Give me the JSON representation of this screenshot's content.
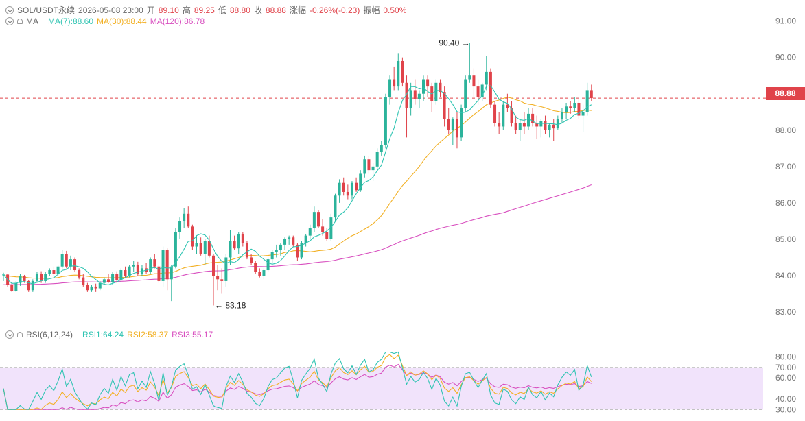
{
  "header": {
    "symbol": "SOL/USDT永续",
    "datetime": "2026-05-08 23:00",
    "open_label": "开",
    "open": "89.10",
    "high_label": "高",
    "high": "89.25",
    "low_label": "低",
    "low": "88.80",
    "close_label": "收",
    "close": "88.88",
    "change_label": "涨幅",
    "change": "-0.26%(-0.23)",
    "amp_label": "振幅",
    "amp": "0.50%"
  },
  "ma_legend": {
    "name": "MA",
    "ma7": "MA(7):88.60",
    "ma30": "MA(30):88.44",
    "ma120": "MA(120):86.78"
  },
  "rsi_legend": {
    "name": "RSI(6,12,24)",
    "rsi1": "RSI1:64.24",
    "rsi2": "RSI2:58.37",
    "rsi3": "RSI3:55.17"
  },
  "price_tag": "88.88",
  "colors": {
    "up": "#2bb39b",
    "down": "#e0434a",
    "ma7": "#2fc4b2",
    "ma30": "#f2b024",
    "ma120": "#d84fbf",
    "rsi1": "#2fc4b2",
    "rsi2": "#f2b024",
    "rsi3": "#d84fbf",
    "rsi_band": "#f1e3fb"
  },
  "chart_data": [
    {
      "type": "candlestick",
      "title": "SOL/USDT永续",
      "y_ticks": [
        "91.00",
        "90.00",
        "89.00",
        "88.00",
        "87.00",
        "86.00",
        "85.00",
        "84.00",
        "83.00"
      ],
      "ylim": [
        82.85,
        91.2
      ],
      "last_price": 88.88,
      "annotations": [
        {
          "text": "90.40",
          "value": 90.4,
          "type": "max"
        },
        {
          "text": "83.18",
          "value": 83.18,
          "type": "min"
        }
      ],
      "candles": [
        [
          84.02,
          84.08,
          83.85,
          84.03
        ],
        [
          84.03,
          84.05,
          83.7,
          83.75
        ],
        [
          83.75,
          83.82,
          83.55,
          83.58
        ],
        [
          83.58,
          83.85,
          83.55,
          83.8
        ],
        [
          83.8,
          84.05,
          83.72,
          84
        ],
        [
          84,
          84.02,
          83.8,
          83.85
        ],
        [
          83.85,
          83.88,
          83.55,
          83.6
        ],
        [
          83.6,
          83.9,
          83.55,
          83.85
        ],
        [
          83.85,
          84.1,
          83.8,
          84.05
        ],
        [
          84.05,
          84.12,
          83.8,
          83.85
        ],
        [
          83.85,
          84.1,
          83.8,
          84.05
        ],
        [
          84.05,
          84.2,
          84,
          84.15
        ],
        [
          84.15,
          84.25,
          84,
          84.05
        ],
        [
          84.05,
          84.3,
          84,
          84.25
        ],
        [
          84.25,
          84.7,
          84.2,
          84.6
        ],
        [
          84.6,
          84.68,
          84.2,
          84.25
        ],
        [
          84.25,
          84.55,
          84.15,
          84.45
        ],
        [
          84.45,
          84.5,
          84.1,
          84.15
        ],
        [
          84.15,
          84.2,
          83.9,
          83.95
        ],
        [
          83.95,
          84.05,
          83.7,
          83.75
        ],
        [
          83.75,
          83.8,
          83.55,
          83.6
        ],
        [
          83.6,
          83.75,
          83.55,
          83.7
        ],
        [
          83.7,
          83.78,
          83.55,
          83.65
        ],
        [
          83.65,
          83.85,
          83.6,
          83.8
        ],
        [
          83.8,
          83.95,
          83.75,
          83.9
        ],
        [
          83.9,
          84.05,
          83.8,
          83.82
        ],
        [
          83.82,
          84.1,
          83.75,
          84.05
        ],
        [
          84.05,
          84.12,
          83.8,
          83.88
        ],
        [
          83.88,
          84.2,
          83.82,
          84.15
        ],
        [
          84.15,
          84.25,
          83.95,
          84
        ],
        [
          84,
          84.3,
          83.95,
          84.25
        ],
        [
          84.25,
          84.4,
          84.1,
          84.3
        ],
        [
          84.3,
          84.38,
          84,
          84.05
        ],
        [
          84.05,
          84.3,
          84,
          84.2
        ],
        [
          84.2,
          84.35,
          84.05,
          84.1
        ],
        [
          84.1,
          84.5,
          84.05,
          84.45
        ],
        [
          84.45,
          84.6,
          84.2,
          84.25
        ],
        [
          84.25,
          84.3,
          83.8,
          83.85
        ],
        [
          83.85,
          84.8,
          83.7,
          84.7
        ],
        [
          84.7,
          84.75,
          83.6,
          83.9
        ],
        [
          83.9,
          84.3,
          83.3,
          84.25
        ],
        [
          84.25,
          85.3,
          84.2,
          85.2
        ],
        [
          85.2,
          85.6,
          85,
          85.5
        ],
        [
          85.5,
          85.85,
          85.3,
          85.7
        ],
        [
          85.7,
          85.9,
          85.3,
          85.35
        ],
        [
          85.35,
          85.4,
          84.7,
          84.8
        ],
        [
          84.8,
          85.1,
          84.6,
          84.9
        ],
        [
          84.9,
          85.05,
          84.55,
          84.6
        ],
        [
          84.6,
          85,
          84.3,
          84.95
        ],
        [
          84.95,
          85.1,
          84.5,
          84.55
        ],
        [
          84.55,
          84.6,
          83.18,
          84
        ],
        [
          84,
          84.3,
          83.6,
          83.9
        ],
        [
          83.9,
          84.2,
          83.5,
          83.85
        ],
        [
          83.85,
          84.6,
          83.7,
          84.5
        ],
        [
          84.5,
          85.25,
          84.3,
          84.95
        ],
        [
          84.95,
          85.1,
          84.7,
          84.75
        ],
        [
          84.75,
          85.2,
          84.6,
          85.15
        ],
        [
          85.15,
          85.2,
          84.8,
          84.9
        ],
        [
          84.9,
          84.95,
          84.45,
          84.5
        ],
        [
          84.5,
          84.6,
          84.3,
          84.35
        ],
        [
          84.35,
          84.4,
          84.05,
          84.1
        ],
        [
          84.1,
          84.2,
          83.95,
          84
        ],
        [
          84,
          84.2,
          83.9,
          84.15
        ],
        [
          84.15,
          84.5,
          84.1,
          84.45
        ],
        [
          84.45,
          84.7,
          84.35,
          84.65
        ],
        [
          84.65,
          84.85,
          84.5,
          84.7
        ],
        [
          84.7,
          84.9,
          84.55,
          84.85
        ],
        [
          84.85,
          85.05,
          84.7,
          85
        ],
        [
          85,
          85.1,
          84.85,
          85.05
        ],
        [
          85.05,
          85.1,
          84.8,
          84.85
        ],
        [
          84.85,
          84.9,
          84.4,
          84.5
        ],
        [
          84.5,
          84.95,
          84.45,
          84.9
        ],
        [
          84.9,
          85.15,
          84.8,
          85.1
        ],
        [
          85.1,
          85.4,
          85,
          85.3
        ],
        [
          85.3,
          85.9,
          85.2,
          85.75
        ],
        [
          85.75,
          85.8,
          85.3,
          85.35
        ],
        [
          85.35,
          85.55,
          85.1,
          85.2
        ],
        [
          85.2,
          85.3,
          84.95,
          85
        ],
        [
          85,
          85.7,
          84.95,
          85.6
        ],
        [
          85.6,
          86.25,
          85.5,
          86.2
        ],
        [
          86.2,
          86.65,
          86,
          86.55
        ],
        [
          86.55,
          86.7,
          86.2,
          86.3
        ],
        [
          86.3,
          86.5,
          86.1,
          86.2
        ],
        [
          86.2,
          86.6,
          86.1,
          86.55
        ],
        [
          86.55,
          86.7,
          86.3,
          86.35
        ],
        [
          86.35,
          86.9,
          86.3,
          86.8
        ],
        [
          86.8,
          87.3,
          86.7,
          87.2
        ],
        [
          87.2,
          87.3,
          86.8,
          86.9
        ],
        [
          86.9,
          87.1,
          86.6,
          87
        ],
        [
          87,
          87.5,
          86.9,
          87.4
        ],
        [
          87.4,
          87.7,
          87.3,
          87.6
        ],
        [
          87.6,
          89,
          87.5,
          88.9
        ],
        [
          88.9,
          89.5,
          88.7,
          89.4
        ],
        [
          89.4,
          89.75,
          89.1,
          89.2
        ],
        [
          89.2,
          90.1,
          89.1,
          89.9
        ],
        [
          89.9,
          90,
          89.2,
          89.3
        ],
        [
          89.3,
          89.5,
          87.8,
          88.6
        ],
        [
          88.6,
          89.3,
          88.4,
          89.1
        ],
        [
          89.1,
          89.4,
          88.7,
          88.85
        ],
        [
          88.85,
          89.1,
          88.6,
          89
        ],
        [
          89,
          89.5,
          88.8,
          89.4
        ],
        [
          89.4,
          89.5,
          88.9,
          89.2
        ],
        [
          89.2,
          89.3,
          88.5,
          88.8
        ],
        [
          88.8,
          89.4,
          88.7,
          89.3
        ],
        [
          89.3,
          89.4,
          88.9,
          89.05
        ],
        [
          89.05,
          89.2,
          88.1,
          88.3
        ],
        [
          88.3,
          88.6,
          87.9,
          88
        ],
        [
          88,
          88.35,
          87.6,
          88.3
        ],
        [
          88.3,
          88.5,
          87.5,
          87.8
        ],
        [
          87.8,
          88.7,
          87.7,
          88.6
        ],
        [
          88.6,
          89.5,
          88.5,
          89.4
        ],
        [
          89.4,
          90.4,
          89.3,
          89.5
        ],
        [
          89.5,
          89.7,
          88.9,
          89.2
        ],
        [
          89.2,
          89.4,
          88.7,
          88.9
        ],
        [
          88.9,
          89.3,
          88.8,
          89.25
        ],
        [
          89.25,
          90.05,
          89.1,
          89.6
        ],
        [
          89.6,
          89.7,
          88.6,
          88.7
        ],
        [
          88.7,
          88.8,
          88.1,
          88.2
        ],
        [
          88.2,
          88.5,
          87.9,
          88.1
        ],
        [
          88.1,
          88.8,
          88,
          88.7
        ],
        [
          88.7,
          89,
          88.5,
          88.6
        ],
        [
          88.6,
          88.8,
          88.1,
          88.2
        ],
        [
          88.2,
          88.4,
          87.9,
          88
        ],
        [
          88,
          88.3,
          87.7,
          88.2
        ],
        [
          88.2,
          88.5,
          87.9,
          88.1
        ],
        [
          88.1,
          88.6,
          88,
          88.45
        ],
        [
          88.45,
          88.6,
          88.1,
          88.2
        ],
        [
          88.2,
          88.4,
          87.75,
          88.1
        ],
        [
          88.1,
          88.3,
          87.8,
          88.25
        ],
        [
          88.25,
          88.4,
          87.9,
          88
        ],
        [
          88,
          88.2,
          87.8,
          88.15
        ],
        [
          88.15,
          88.3,
          87.7,
          88.05
        ],
        [
          88.05,
          88.4,
          88,
          88.3
        ],
        [
          88.3,
          88.6,
          88.2,
          88.5
        ],
        [
          88.5,
          88.75,
          88.3,
          88.65
        ],
        [
          88.65,
          88.8,
          88.45,
          88.6
        ],
        [
          88.6,
          88.9,
          88.5,
          88.75
        ],
        [
          88.75,
          88.85,
          88.3,
          88.4
        ],
        [
          88.4,
          88.7,
          87.95,
          88.5
        ],
        [
          88.5,
          89.3,
          88.4,
          89.1
        ],
        [
          89.1,
          89.25,
          88.8,
          88.88
        ]
      ]
    },
    {
      "type": "line",
      "title": "RSI(6,12,24)",
      "y_ticks": [
        "80.00",
        "70.00",
        "60.00",
        "40.00",
        "30.00"
      ],
      "ylim": [
        29.6,
        84.8
      ],
      "band": [
        30,
        70
      ],
      "series": [
        {
          "name": "RSI1",
          "last": 64.24
        },
        {
          "name": "RSI2",
          "last": 58.37
        },
        {
          "name": "RSI3",
          "last": 55.17
        }
      ]
    }
  ]
}
